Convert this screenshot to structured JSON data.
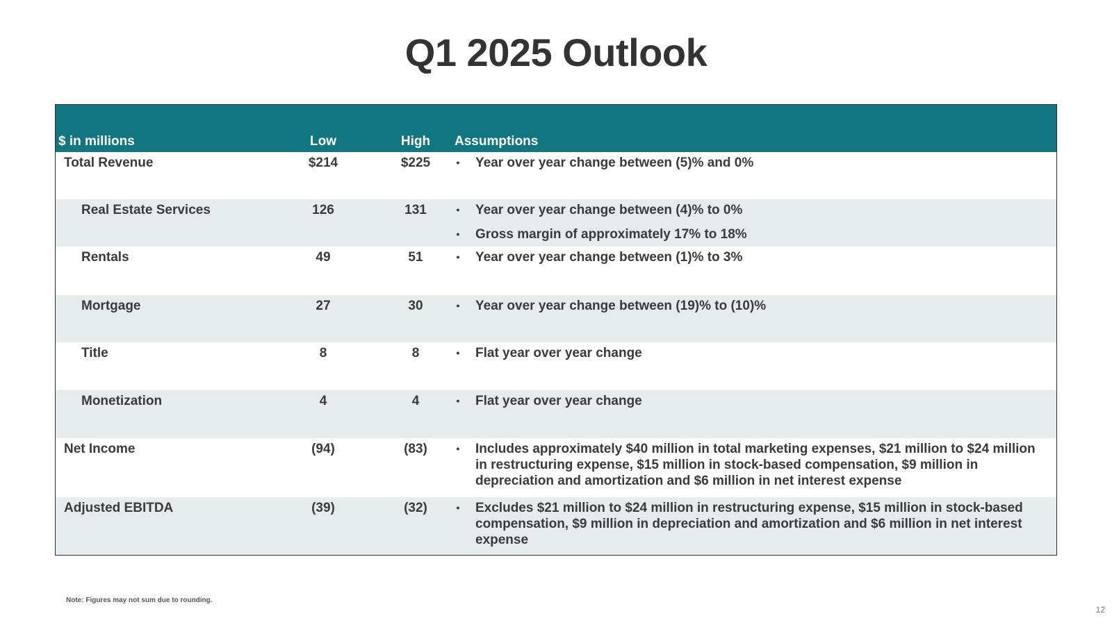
{
  "title": "Q1 2025 Outlook",
  "colors": {
    "header_bg": "#127680",
    "row_shade": "#e6ecec",
    "text": "#3a3a3a"
  },
  "table": {
    "headers": {
      "label": "$ in millions",
      "low": "Low",
      "high": "High",
      "assumptions": "Assumptions"
    },
    "rows": [
      {
        "label": "Total Revenue",
        "low": "$214",
        "high": "$225",
        "assumptions": [
          "Year over year change between (5)% and 0%"
        ]
      },
      {
        "label": "Real Estate Services",
        "low": "126",
        "high": "131",
        "assumptions": [
          "Year over year change between (4)% to 0%",
          "Gross margin of approximately 17% to 18%"
        ]
      },
      {
        "label": "Rentals",
        "low": "49",
        "high": "51",
        "assumptions": [
          "Year over year change between (1)% to 3%"
        ]
      },
      {
        "label": "Mortgage",
        "low": "27",
        "high": "30",
        "assumptions": [
          "Year over year change between (19)% to (10)%"
        ]
      },
      {
        "label": "Title",
        "low": "8",
        "high": "8",
        "assumptions": [
          "Flat year over year change"
        ]
      },
      {
        "label": "Monetization",
        "low": "4",
        "high": "4",
        "assumptions": [
          "Flat year over year change"
        ]
      },
      {
        "label": "Net Income",
        "low": "(94)",
        "high": "(83)",
        "assumptions": [
          "Includes approximately $40 million in total marketing expenses, $21 million to $24 million in restructuring expense, $15 million in stock-based compensation, $9 million in depreciation and amortization and  $6 million in net interest expense"
        ]
      },
      {
        "label": "Adjusted EBITDA",
        "low": "(39)",
        "high": "(32)",
        "assumptions": [
          "Excludes $21 million to $24 million in restructuring expense, $15 million in stock-based compensation, $9 million in depreciation and amortization and  $6 million in net interest expense"
        ]
      }
    ]
  },
  "footnote": "Note: Figures may not sum due to rounding.",
  "page_number": "12"
}
